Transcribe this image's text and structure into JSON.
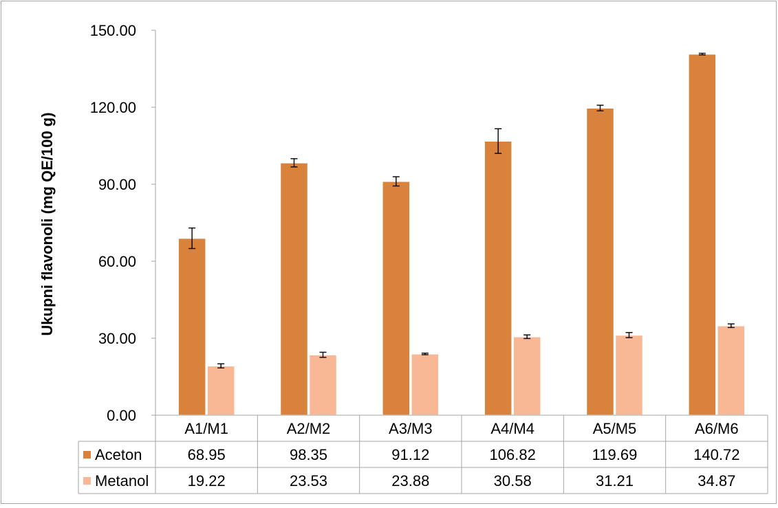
{
  "chart_data": {
    "type": "bar",
    "categories": [
      "A1/M1",
      "A2/M2",
      "A3/M3",
      "A4/M4",
      "A5/M5",
      "A6/M6"
    ],
    "series": [
      {
        "name": "Aceton",
        "color": "#D9823B",
        "values": [
          68.95,
          98.35,
          91.12,
          106.82,
          119.69,
          140.72
        ],
        "errors": [
          4.0,
          1.6,
          1.8,
          4.8,
          1.1,
          0.3
        ],
        "labels": [
          "68.95",
          "98.35",
          "91.12",
          "106.82",
          "119.69",
          "140.72"
        ]
      },
      {
        "name": "Metanol",
        "color": "#F8B895",
        "values": [
          19.22,
          23.53,
          23.88,
          30.58,
          31.21,
          34.87
        ],
        "errors": [
          0.8,
          1.0,
          0.3,
          0.7,
          1.0,
          0.7
        ],
        "labels": [
          "19.22",
          "23.53",
          "23.88",
          "30.58",
          "31.21",
          "34.87"
        ]
      }
    ],
    "ylabel": "Ukupni flavonoli (mg QE/100 g)",
    "xlabel": "",
    "ylim": [
      0,
      150
    ],
    "yticks": [
      0,
      30,
      60,
      90,
      120,
      150
    ],
    "ytick_labels": [
      "0.00",
      "30.00",
      "60.00",
      "90.00",
      "120.00",
      "150.00"
    ],
    "grid": false,
    "legend": "data-table"
  }
}
